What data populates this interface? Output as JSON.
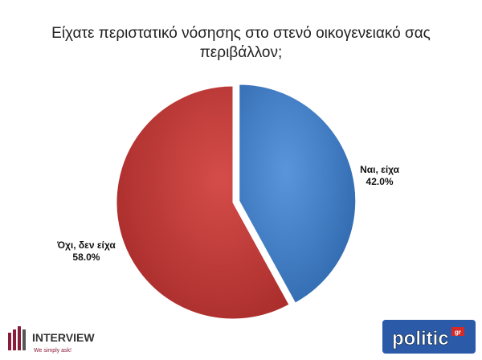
{
  "chart_data": {
    "type": "pie",
    "title": "Είχατε περιστατικό νόσησης στο στενό οικογενειακό σας περιβάλλον;",
    "categories": [
      "Ναι, είχα",
      "Όχι, δεν είχα"
    ],
    "values": [
      42,
      58
    ],
    "value_labels": [
      "42.0%",
      "58.0%"
    ],
    "colors": [
      "#3f7bc6",
      "#c23a38"
    ]
  },
  "footer": {
    "left_logo": "INTERVIEW",
    "left_slogan": "We simply ask!",
    "right_logo": "politic",
    "right_logo_suffix": "gr"
  }
}
